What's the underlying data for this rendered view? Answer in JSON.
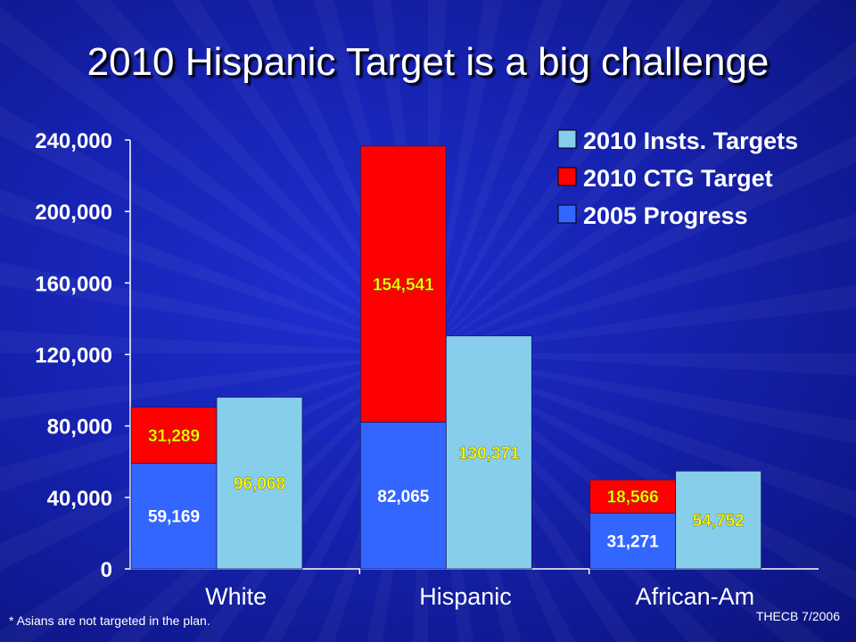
{
  "title": "2010 Hispanic Target is a big challenge",
  "footnote": "* Asians are not targeted in the plan.",
  "source": "THECB 7/2006",
  "chart_data": {
    "type": "bar",
    "stacked": true,
    "categories": [
      "White",
      "Hispanic",
      "African-Am"
    ],
    "ylim": [
      0,
      240000
    ],
    "yticks": [
      0,
      40000,
      80000,
      120000,
      160000,
      200000,
      240000
    ],
    "ytick_labels": [
      "0",
      "40,000",
      "80,000",
      "120,000",
      "160,000",
      "200,000",
      "240,000"
    ],
    "legend_position": "top-right",
    "grid": false,
    "legend": [
      {
        "name": "2010 Insts. Targets",
        "color": "#87ceeb"
      },
      {
        "name": "2010 CTG Target",
        "color": "#ff0000"
      },
      {
        "name": "2005 Progress",
        "color": "#3366ff"
      }
    ],
    "stacked_bar": {
      "progress": [
        59169,
        82065,
        31271
      ],
      "progress_labels": [
        "59,169",
        "82,065",
        "31,271"
      ],
      "ctg": [
        31289,
        154541,
        18566
      ],
      "ctg_labels": [
        "31,289",
        "154,541",
        "18,566"
      ]
    },
    "insts_bar": {
      "values": [
        96068,
        130371,
        54752
      ],
      "labels": [
        "96,068",
        "130,371",
        "54,752"
      ]
    },
    "colors": {
      "insts": "#87ceeb",
      "ctg": "#ff0000",
      "progress": "#3366ff",
      "label_yellow": "#ffff00",
      "label_white": "#ffffff",
      "axis": "#ffffff"
    }
  }
}
